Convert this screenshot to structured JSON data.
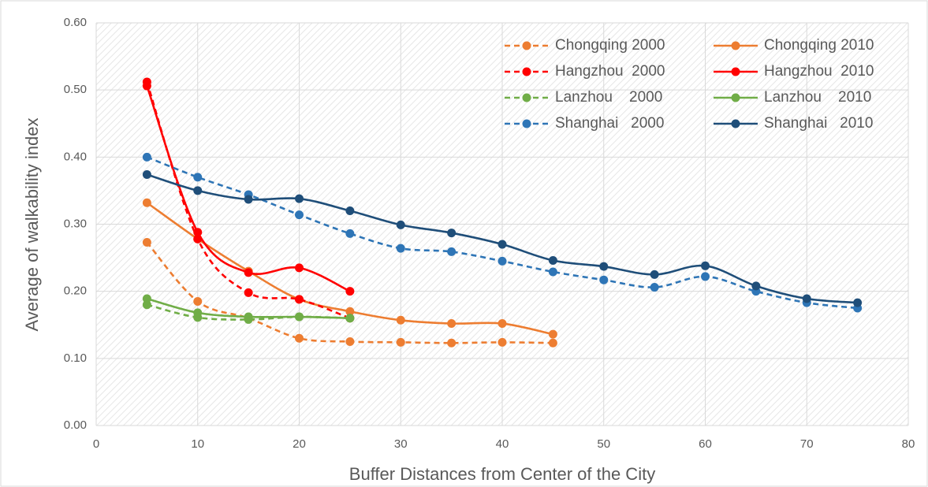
{
  "chart_data": {
    "type": "line",
    "xlabel": "Buffer Distances from Center of the City",
    "ylabel": "Average of walkability index",
    "x": [
      5,
      10,
      15,
      20,
      25,
      30,
      35,
      40,
      45,
      50,
      55,
      60,
      65,
      70,
      75
    ],
    "series": [
      {
        "name": "Chongqing 2000",
        "color": "#ED7D31",
        "dashed": true,
        "values": [
          0.273,
          0.185,
          0.16,
          0.13,
          0.125,
          0.124,
          0.123,
          0.124,
          0.123,
          null,
          null,
          null,
          null,
          null,
          null
        ]
      },
      {
        "name": "Chongqing 2010",
        "color": "#ED7D31",
        "dashed": false,
        "values": [
          0.332,
          0.278,
          0.23,
          0.188,
          0.17,
          0.157,
          0.152,
          0.152,
          0.136,
          null,
          null,
          null,
          null,
          null,
          null
        ]
      },
      {
        "name": "Hangzhou  2000",
        "color": "#FF0000",
        "dashed": true,
        "values": [
          0.512,
          0.278,
          0.198,
          0.188,
          0.16,
          null,
          null,
          null,
          null,
          null,
          null,
          null,
          null,
          null,
          null
        ]
      },
      {
        "name": "Hangzhou  2010",
        "color": "#FF0000",
        "dashed": false,
        "values": [
          0.506,
          0.288,
          0.228,
          0.235,
          0.2,
          null,
          null,
          null,
          null,
          null,
          null,
          null,
          null,
          null,
          null
        ]
      },
      {
        "name": "Lanzhou    2000",
        "color": "#70AD47",
        "dashed": true,
        "values": [
          0.18,
          0.161,
          0.158,
          0.162,
          0.16,
          null,
          null,
          null,
          null,
          null,
          null,
          null,
          null,
          null,
          null
        ]
      },
      {
        "name": "Lanzhou    2010",
        "color": "#70AD47",
        "dashed": false,
        "values": [
          0.189,
          0.168,
          0.162,
          0.162,
          0.16,
          null,
          null,
          null,
          null,
          null,
          null,
          null,
          null,
          null,
          null
        ]
      },
      {
        "name": "Shanghai   2000",
        "color": "#2E75B6",
        "dashed": true,
        "values": [
          0.4,
          0.37,
          0.344,
          0.314,
          0.286,
          0.264,
          0.259,
          0.245,
          0.229,
          0.217,
          0.206,
          0.222,
          0.2,
          0.183,
          0.175
        ]
      },
      {
        "name": "Shanghai   2010",
        "color": "#1F4E79",
        "dashed": false,
        "values": [
          0.374,
          0.35,
          0.337,
          0.338,
          0.32,
          0.299,
          0.287,
          0.27,
          0.246,
          0.237,
          0.225,
          0.238,
          0.208,
          0.189,
          0.183
        ]
      }
    ],
    "xlim": [
      0,
      80
    ],
    "xticks": [
      0,
      10,
      20,
      30,
      40,
      50,
      60,
      70,
      80
    ],
    "ylim": [
      0,
      0.6
    ],
    "yticks": [
      {
        "value": 0,
        "label": "0.00"
      },
      {
        "value": 0.1,
        "label": "0.10"
      },
      {
        "value": 0.2,
        "label": "0.20"
      },
      {
        "value": 0.3,
        "label": "0.30"
      },
      {
        "value": 0.4,
        "label": "0.40"
      },
      {
        "value": 0.5,
        "label": "0.50"
      },
      {
        "value": 0.6,
        "label": "0.60"
      }
    ],
    "grid": true,
    "legend": "upper right"
  }
}
